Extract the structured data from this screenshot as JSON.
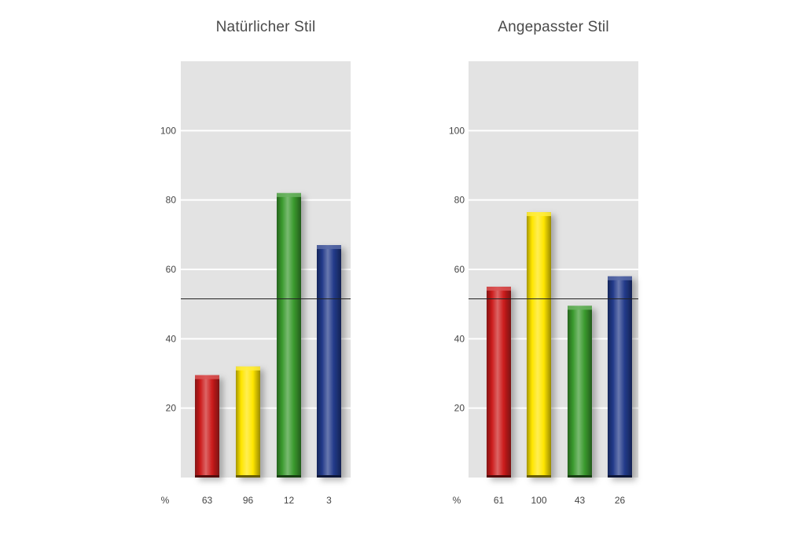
{
  "chart_data": [
    {
      "type": "bar",
      "title": "Natürlicher Stil",
      "ylim": [
        0,
        120
      ],
      "yticks": [
        20,
        40,
        60,
        80,
        100
      ],
      "grid": true,
      "reference_line": 51.5,
      "unit_label": "%",
      "categories": [
        "63",
        "96",
        "12",
        "3"
      ],
      "values": [
        29.5,
        32,
        82,
        67
      ],
      "colors": [
        "#cc1c1c",
        "#ffe600",
        "#3a9a2e",
        "#223a8a"
      ]
    },
    {
      "type": "bar",
      "title": "Angepasster Stil",
      "ylim": [
        0,
        120
      ],
      "yticks": [
        20,
        40,
        60,
        80,
        100
      ],
      "grid": true,
      "reference_line": 51.5,
      "unit_label": "%",
      "categories": [
        "61",
        "100",
        "43",
        "26"
      ],
      "values": [
        55,
        76.5,
        49.5,
        58
      ],
      "colors": [
        "#cc1c1c",
        "#ffe600",
        "#3a9a2e",
        "#223a8a"
      ]
    }
  ]
}
